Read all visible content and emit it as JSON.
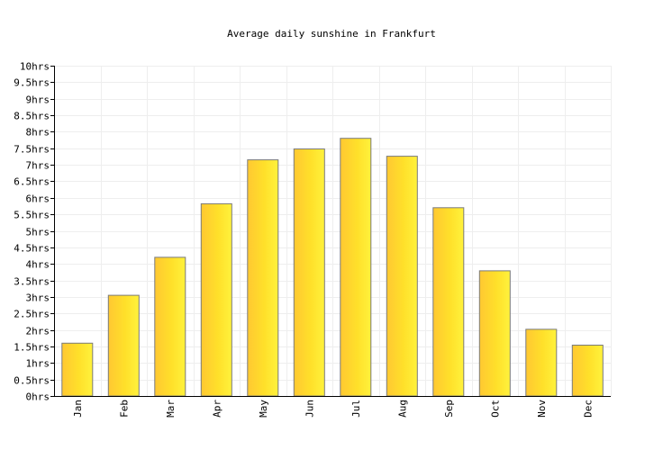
{
  "chart_data": {
    "type": "bar",
    "title": "Average daily sunshine in Frankfurt",
    "xlabel": "",
    "ylabel": "",
    "categories": [
      "Jan",
      "Feb",
      "Mar",
      "Apr",
      "May",
      "Jun",
      "Jul",
      "Aug",
      "Sep",
      "Oct",
      "Nov",
      "Dec"
    ],
    "values": [
      1.6,
      3.05,
      4.2,
      5.82,
      7.15,
      7.48,
      7.8,
      7.26,
      5.7,
      3.79,
      2.02,
      1.54
    ],
    "ylim": [
      0,
      10
    ],
    "y_tick_labels": [
      "0hrs",
      "0.5hrs",
      "1hrs",
      "1.5hrs",
      "2hrs",
      "2.5hrs",
      "3hrs",
      "3.5hrs",
      "4hrs",
      "4.5hrs",
      "5hrs",
      "5.5hrs",
      "6hrs",
      "6.5hrs",
      "7hrs",
      "7.5hrs",
      "8hrs",
      "8.5hrs",
      "9hrs",
      "9.5hrs",
      "10hrs"
    ],
    "grid": true,
    "legend": "none",
    "colors": {
      "bar_left": "#FFC832",
      "bar_mid": "#FFE02A",
      "bar_right": "#FFF23C",
      "bar_stroke": "#7a7a7a",
      "grid": "#eeeeee",
      "axis": "#000000",
      "text": "#000000"
    }
  }
}
